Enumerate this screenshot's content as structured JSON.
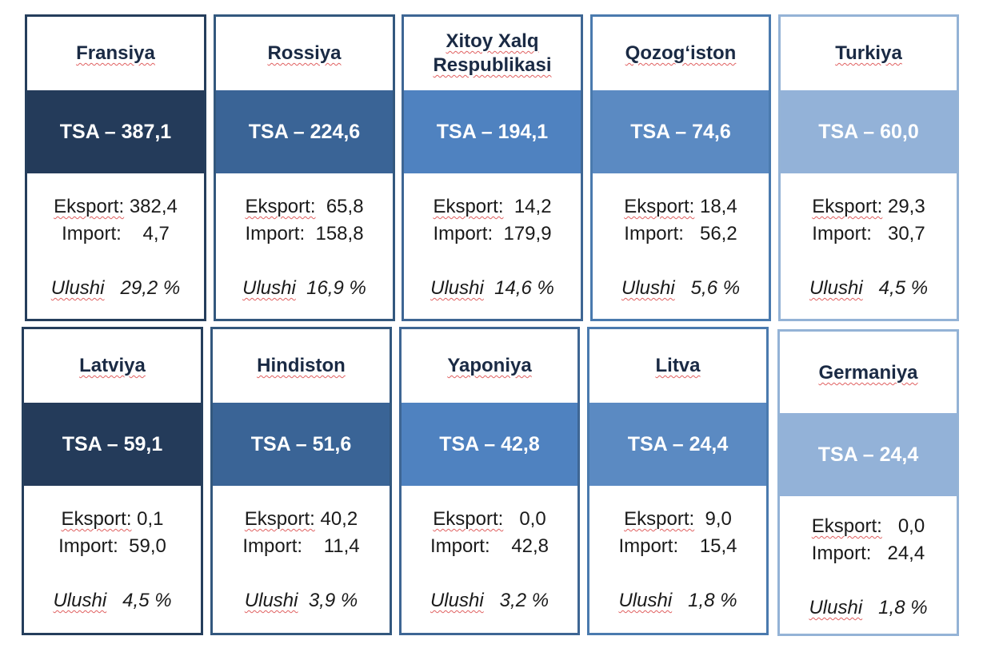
{
  "labels": {
    "export": "Eksport:",
    "import": "Import:",
    "share": "Ulushi"
  },
  "colors": {
    "band_1": "#243b5a",
    "band_2": "#3a6496",
    "band_3": "#4f82c0",
    "band_4": "#5b8ac2",
    "band_5": "#93b2d8"
  },
  "cards": [
    {
      "country": "Fransiya",
      "tsa": "TSA – 387,1",
      "export": "382,4",
      "import": "4,7",
      "share": "29,2 %"
    },
    {
      "country": "Rossiya",
      "tsa": "TSA – 224,6",
      "export": "65,8",
      "import": "158,8",
      "share": "16,9 %"
    },
    {
      "country": "Xitoy Xalq Respublikasi",
      "tsa": "TSA – 194,1",
      "export": "14,2",
      "import": "179,9",
      "share": "14,6 %"
    },
    {
      "country": "Qozog‘iston",
      "tsa": "TSA – 74,6",
      "export": "18,4",
      "import": "56,2",
      "share": "5,6 %"
    },
    {
      "country": "Turkiya",
      "tsa": "TSA – 60,0",
      "export": "29,3",
      "import": "30,7",
      "share": "4,5 %"
    },
    {
      "country": "Latviya",
      "tsa": "TSA – 59,1",
      "export": "0,1",
      "import": "59,0",
      "share": "4,5 %"
    },
    {
      "country": "Hindiston",
      "tsa": "TSA – 51,6",
      "export": "40,2",
      "import": "11,4",
      "share": "3,9 %"
    },
    {
      "country": "Yaponiya",
      "tsa": "TSA – 42,8",
      "export": "0,0",
      "import": "42,8",
      "share": "3,2 %"
    },
    {
      "country": "Litva",
      "tsa": "TSA – 24,4",
      "export": "9,0",
      "import": "15,4",
      "share": "1,8 %"
    },
    {
      "country": "Germaniya",
      "tsa": "TSA – 24,4",
      "export": "0,0",
      "import": "24,4",
      "share": "1,8 %"
    }
  ]
}
